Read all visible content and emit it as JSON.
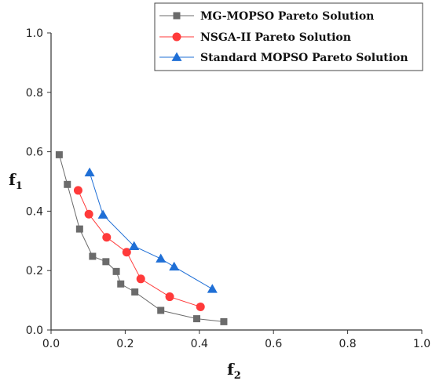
{
  "chart_data": {
    "type": "line",
    "xlabel": "f",
    "xlabel_sub": "2",
    "ylabel": "f",
    "ylabel_sub": "1",
    "xlim": [
      0.0,
      1.0
    ],
    "ylim": [
      0.0,
      1.0
    ],
    "xticks": [
      "0.0",
      "0.2",
      "0.4",
      "0.6",
      "0.8",
      "1.0"
    ],
    "yticks": [
      "0.0",
      "0.2",
      "0.4",
      "0.6",
      "0.8",
      "1.0"
    ],
    "grid": false,
    "legend_position": "top-right",
    "series": [
      {
        "name": "MG-MOPSO Pareto Solution",
        "color": "#6b6b6b",
        "marker": "square",
        "x": [
          0.022,
          0.044,
          0.077,
          0.112,
          0.148,
          0.176,
          0.188,
          0.226,
          0.296,
          0.393,
          0.466
        ],
        "y": [
          0.59,
          0.49,
          0.34,
          0.248,
          0.23,
          0.197,
          0.155,
          0.128,
          0.066,
          0.038,
          0.028
        ]
      },
      {
        "name": "NSGA-II Pareto Solution",
        "color": "#ff3a3a",
        "marker": "circle",
        "x": [
          0.073,
          0.102,
          0.15,
          0.204,
          0.242,
          0.32,
          0.403
        ],
        "y": [
          0.47,
          0.39,
          0.312,
          0.262,
          0.172,
          0.112,
          0.078
        ]
      },
      {
        "name": "Standard MOPSO Pareto Solution",
        "color": "#1f6fd6",
        "marker": "triangle",
        "x": [
          0.104,
          0.14,
          0.224,
          0.296,
          0.332,
          0.435
        ],
        "y": [
          0.53,
          0.388,
          0.282,
          0.24,
          0.213,
          0.138
        ]
      }
    ]
  }
}
